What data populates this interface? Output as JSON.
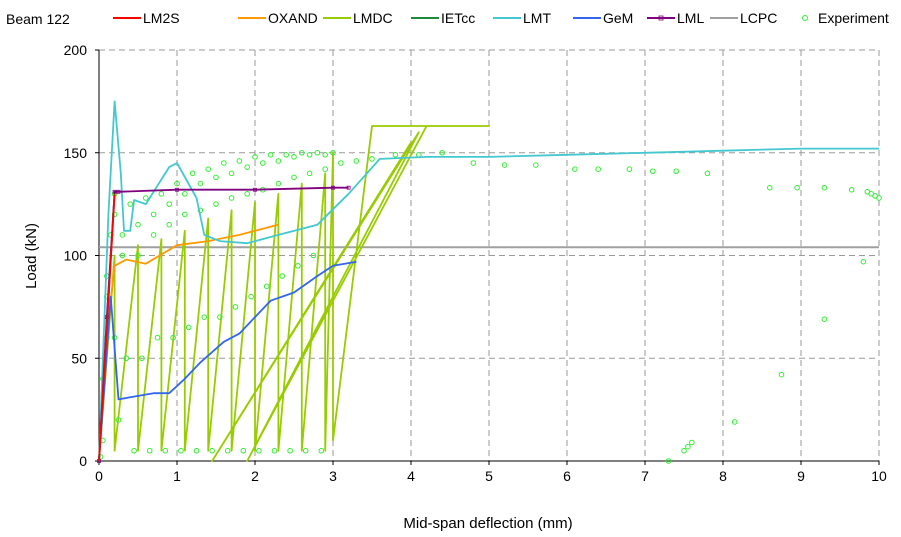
{
  "chart_data": {
    "type": "line",
    "title": "Beam 122",
    "xlabel": "Mid-span deflection (mm)",
    "ylabel": "Load (kN)",
    "xlim": [
      0,
      10
    ],
    "ylim": [
      0,
      200
    ],
    "xticks": [
      "0",
      "1",
      "2",
      "3",
      "4",
      "5",
      "6",
      "7",
      "8",
      "9",
      "10"
    ],
    "yticks": [
      "0",
      "50",
      "100",
      "150",
      "200"
    ],
    "grid": true,
    "legend_position": "top",
    "series": [
      {
        "name": "LM2S",
        "color": "#ff0000",
        "marker": "none",
        "x": [
          0,
          0.1,
          0.2
        ],
        "y": [
          0,
          65,
          130
        ]
      },
      {
        "name": "OXAND",
        "color": "#ff9900",
        "marker": "none",
        "x": [
          0,
          0.1,
          0.2,
          0.35,
          0.6,
          1.0,
          1.4,
          1.8,
          2.1,
          2.3
        ],
        "y": [
          0,
          60,
          95,
          98,
          96,
          105,
          107,
          110,
          113,
          115
        ]
      },
      {
        "name": "LMDC",
        "color": "#99cc00",
        "marker": "none",
        "x": [
          0,
          0.2,
          0.2,
          0.5,
          0.5,
          0.8,
          0.8,
          1.1,
          1.1,
          1.4,
          1.4,
          1.7,
          1.7,
          2.0,
          2.0,
          2.3,
          2.3,
          2.6,
          2.6,
          2.9,
          2.9,
          3.0,
          3.0,
          3.5,
          4.2,
          5.0,
          4.2,
          1.9,
          4.1,
          1.45,
          4.0
        ],
        "y": [
          0,
          100,
          5,
          105,
          5,
          108,
          5,
          112,
          5,
          118,
          5,
          122,
          5,
          126,
          5,
          130,
          5,
          135,
          5,
          140,
          5,
          150,
          10,
          163,
          163,
          163,
          163,
          0,
          160,
          0,
          155
        ]
      },
      {
        "name": "IETcc",
        "color": "#1f8a3c",
        "marker": "none",
        "x": [
          0,
          0.2
        ],
        "y": [
          0,
          130
        ]
      },
      {
        "name": "LMT",
        "color": "#44c8d0",
        "marker": "none",
        "x": [
          0,
          0.12,
          0.2,
          0.28,
          0.32,
          0.4,
          0.45,
          0.6,
          0.9,
          1.0,
          1.25,
          1.35,
          1.55,
          1.9,
          2.3,
          2.8,
          3.2,
          3.6,
          4.2,
          5.0,
          6.0,
          7.0,
          8.0,
          9.0,
          10.0
        ],
        "y": [
          0,
          120,
          175,
          140,
          112,
          112,
          127,
          125,
          143,
          145,
          128,
          110,
          107,
          106,
          110,
          115,
          130,
          147,
          148,
          148,
          149,
          150,
          151,
          152,
          152
        ]
      },
      {
        "name": "GeM",
        "color": "#3366ee",
        "marker": "none",
        "x": [
          0,
          0.15,
          0.25,
          0.4,
          0.7,
          0.9,
          1.1,
          1.3,
          1.6,
          1.8,
          2.0,
          2.2,
          2.5,
          2.8,
          3.0,
          3.3
        ],
        "y": [
          0,
          80,
          30,
          31,
          33,
          33,
          40,
          48,
          58,
          62,
          70,
          78,
          82,
          90,
          95,
          97
        ]
      },
      {
        "name": "LML",
        "color": "#800080",
        "marker": "square",
        "x": [
          0,
          0.1,
          0.2,
          0.25,
          1.0,
          2.0,
          3.0,
          3.2
        ],
        "y": [
          0,
          70,
          131,
          131,
          132,
          132,
          133,
          133
        ]
      },
      {
        "name": "LCPC",
        "color": "#a0a0a0",
        "marker": "none",
        "x": [
          0,
          10
        ],
        "y": [
          104,
          104
        ]
      },
      {
        "name": "Experiment",
        "color": "#33ee33",
        "marker": "circle",
        "x": [
          0.02,
          0.05,
          0.1,
          0.15,
          0.2,
          0.1,
          0.05,
          0.1,
          0.2,
          0.3,
          0.25,
          0.2,
          0.3,
          0.4,
          0.5,
          0.45,
          0.35,
          0.5,
          0.6,
          0.7,
          0.65,
          0.55,
          0.7,
          0.8,
          0.9,
          0.85,
          0.75,
          0.9,
          1.0,
          1.1,
          1.05,
          0.95,
          1.1,
          1.2,
          1.3,
          1.25,
          1.15,
          1.3,
          1.4,
          1.5,
          1.45,
          1.35,
          1.5,
          1.6,
          1.7,
          1.65,
          1.55,
          1.7,
          1.8,
          1.9,
          1.85,
          1.75,
          1.9,
          2.0,
          2.1,
          2.05,
          1.95,
          2.1,
          2.2,
          2.3,
          2.25,
          2.15,
          2.3,
          2.4,
          2.5,
          2.45,
          2.35,
          2.5,
          2.6,
          2.7,
          2.65,
          2.55,
          2.7,
          2.8,
          2.9,
          2.85,
          2.75,
          2.9,
          3.0,
          3.1,
          3.3,
          3.5,
          3.8,
          4.1,
          4.4,
          4.8,
          5.2,
          5.6,
          6.1,
          6.4,
          6.8,
          7.1,
          7.4,
          7.8,
          8.6,
          8.95,
          9.3,
          9.65,
          9.85,
          9.9,
          9.95,
          10.0,
          9.8,
          9.3,
          8.75,
          8.15,
          7.6,
          7.55,
          7.5,
          7.3
        ],
        "y": [
          2,
          40,
          80,
          110,
          130,
          60,
          10,
          90,
          120,
          100,
          20,
          60,
          110,
          125,
          115,
          5,
          50,
          100,
          128,
          110,
          5,
          50,
          120,
          130,
          115,
          5,
          60,
          125,
          135,
          120,
          5,
          60,
          130,
          140,
          122,
          5,
          65,
          135,
          142,
          125,
          5,
          70,
          138,
          145,
          128,
          5,
          70,
          140,
          146,
          130,
          5,
          75,
          143,
          148,
          132,
          5,
          80,
          145,
          149,
          135,
          5,
          85,
          146,
          149,
          138,
          5,
          90,
          148,
          150,
          140,
          5,
          95,
          149,
          150,
          142,
          5,
          100,
          149,
          150,
          145,
          146,
          147,
          149,
          149,
          150,
          145,
          144,
          144,
          142,
          142,
          142,
          141,
          141,
          140,
          133,
          133,
          133,
          132,
          131,
          130,
          129,
          128,
          97,
          69,
          42,
          19,
          9,
          7,
          5,
          0
        ]
      }
    ]
  }
}
